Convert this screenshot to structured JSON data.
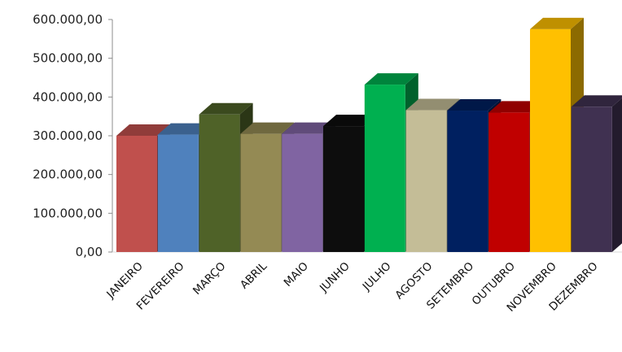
{
  "chart_data": {
    "type": "bar",
    "style": "3d-column",
    "categories": [
      "JANEIRO",
      "FEVEREIRO",
      "MARÇO",
      "ABRIL",
      "MAIO",
      "JUNHO",
      "JULHO",
      "AGOSTO",
      "SETEMBRO",
      "OUTUBRO",
      "NOVEMBRO",
      "DEZEMBRO"
    ],
    "values": [
      300000,
      303000,
      355000,
      305000,
      305000,
      325000,
      432000,
      366000,
      365000,
      360000,
      575000,
      375000
    ],
    "colors": [
      "#c0504d",
      "#4f81bd",
      "#4f6228",
      "#948a54",
      "#8064a2",
      "#0d0d0d",
      "#00b050",
      "#c4bd97",
      "#002060",
      "#c00000",
      "#ffc000",
      "#403151"
    ],
    "yticks": [
      "0,00",
      "100.000,00",
      "200.000,00",
      "300.000,00",
      "400.000,00",
      "500.000,00",
      "600.000,00"
    ],
    "ylim": [
      0,
      600000
    ],
    "grid": false,
    "legend": "none"
  }
}
